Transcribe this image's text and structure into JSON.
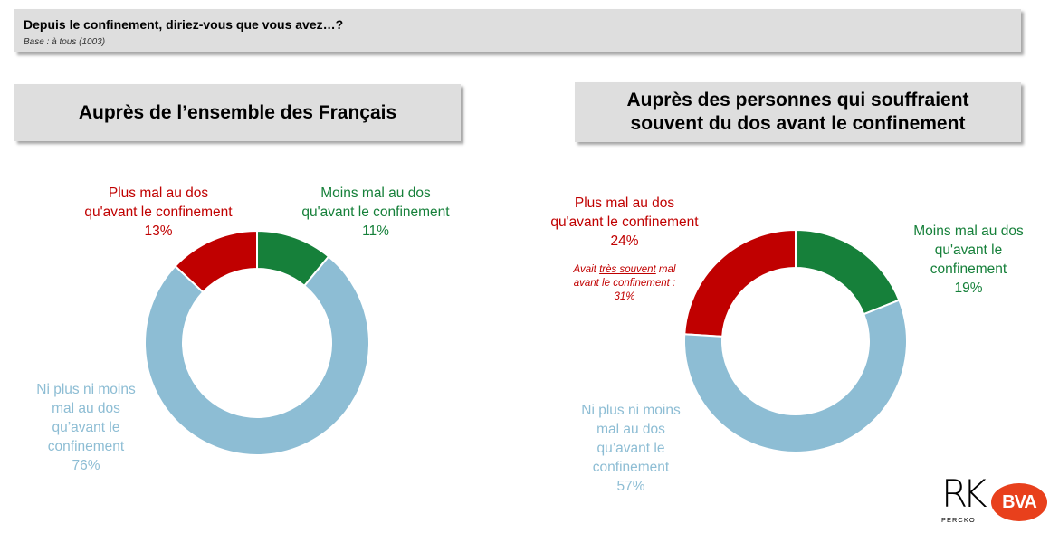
{
  "header": {
    "question": "Depuis le confinement, diriez-vous que vous avez…?",
    "base": "Base : à tous (1003)"
  },
  "colors": {
    "red": "#c00000",
    "green": "#16803a",
    "blue": "#8dbdd4"
  },
  "chart_data": [
    {
      "type": "pie",
      "title": "Auprès de l’ensemble des Français",
      "slices": [
        {
          "key": "plus",
          "label": [
            "Plus mal au dos",
            "qu'avant le confinement"
          ],
          "value": 13,
          "display": "13%",
          "color": "#c00000"
        },
        {
          "key": "moins",
          "label": [
            "Moins mal au dos",
            "qu'avant le confinement"
          ],
          "value": 11,
          "display": "11%",
          "color": "#16803a"
        },
        {
          "key": "ni",
          "label": [
            "Ni plus ni moins",
            "mal au dos",
            "qu’avant le",
            "confinement"
          ],
          "value": 76,
          "display": "76%",
          "color": "#8dbdd4"
        }
      ]
    },
    {
      "type": "pie",
      "title": "Auprès des personnes qui souffraient souvent du dos avant le confinement",
      "title_lines": [
        "Auprès des personnes qui souffraient",
        "souvent du dos avant le confinement"
      ],
      "slices": [
        {
          "key": "plus",
          "label": [
            "Plus mal au dos",
            "qu'avant le confinement"
          ],
          "value": 24,
          "display": "24%",
          "color": "#c00000"
        },
        {
          "key": "moins",
          "label": [
            "Moins mal au dos",
            "qu'avant le",
            "confinement"
          ],
          "value": 19,
          "display": "19%",
          "color": "#16803a"
        },
        {
          "key": "ni",
          "label": [
            "Ni plus ni moins",
            "mal au dos",
            "qu’avant le",
            "confinement"
          ],
          "value": 57,
          "display": "57%",
          "color": "#8dbdd4"
        }
      ],
      "annotation": {
        "line1_prefix": "Avait ",
        "line1_underlined": "très souvent",
        "line1_suffix": " mal",
        "line2": "avant le confinement :",
        "line3": "31%"
      }
    }
  ],
  "logos": {
    "rk": "RK",
    "percko": "PERCKO",
    "bva": "BVA"
  }
}
